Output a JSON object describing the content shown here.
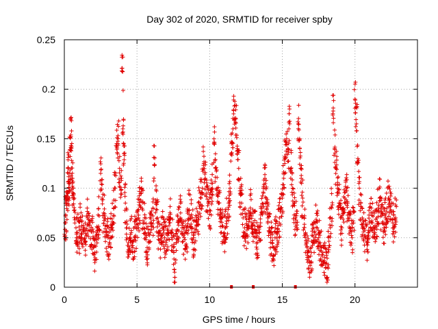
{
  "chart_data": {
    "type": "scatter",
    "title": "Day 302 of 2020, SRMTID for receiver spby",
    "xlabel": "GPS time / hours",
    "ylabel": "SRMTID / TECUs",
    "xlim": [
      0,
      24.3
    ],
    "ylim": [
      0,
      0.25
    ],
    "xticks": [
      0,
      5,
      10,
      15,
      20
    ],
    "xtick_labels": [
      "0",
      "5",
      "10",
      "15",
      "20"
    ],
    "yticks": [
      0,
      0.05,
      0.1,
      0.15,
      0.2,
      0.25
    ],
    "ytick_labels": [
      "0",
      "0.05",
      "0.1",
      "0.15",
      "0.2",
      "0.25"
    ],
    "grid": true,
    "marker": "plus",
    "color": "#e00000",
    "series": [
      {
        "name": "SRMTID",
        "points": [
          [
            0.05,
            0.065
          ],
          [
            0.1,
            0.072
          ],
          [
            0.15,
            0.085
          ],
          [
            0.2,
            0.096
          ],
          [
            0.25,
            0.12
          ],
          [
            0.3,
            0.105
          ],
          [
            0.35,
            0.09
          ],
          [
            0.4,
            0.132
          ],
          [
            0.45,
            0.152
          ],
          [
            0.5,
            0.128
          ],
          [
            0.55,
            0.11
          ],
          [
            0.6,
            0.095
          ],
          [
            0.7,
            0.078
          ],
          [
            0.8,
            0.06
          ],
          [
            0.9,
            0.055
          ],
          [
            1.0,
            0.05
          ],
          [
            1.1,
            0.068
          ],
          [
            1.2,
            0.062
          ],
          [
            1.3,
            0.058
          ],
          [
            1.4,
            0.045
          ],
          [
            1.5,
            0.052
          ],
          [
            1.6,
            0.07
          ],
          [
            1.7,
            0.064
          ],
          [
            1.8,
            0.049
          ],
          [
            1.9,
            0.056
          ],
          [
            2.0,
            0.04
          ],
          [
            2.1,
            0.035
          ],
          [
            2.2,
            0.048
          ],
          [
            2.3,
            0.06
          ],
          [
            2.4,
            0.072
          ],
          [
            2.5,
            0.115
          ],
          [
            2.6,
            0.09
          ],
          [
            2.7,
            0.075
          ],
          [
            2.8,
            0.062
          ],
          [
            2.9,
            0.055
          ],
          [
            3.0,
            0.05
          ],
          [
            3.1,
            0.045
          ],
          [
            3.2,
            0.058
          ],
          [
            3.3,
            0.066
          ],
          [
            3.4,
            0.08
          ],
          [
            3.5,
            0.1
          ],
          [
            3.6,
            0.145
          ],
          [
            3.7,
            0.15
          ],
          [
            3.8,
            0.12
          ],
          [
            3.9,
            0.098
          ],
          [
            4.0,
            0.218
          ],
          [
            4.05,
            0.163
          ],
          [
            4.1,
            0.135
          ],
          [
            4.2,
            0.085
          ],
          [
            4.3,
            0.06
          ],
          [
            4.4,
            0.045
          ],
          [
            4.5,
            0.05
          ],
          [
            4.6,
            0.055
          ],
          [
            4.7,
            0.042
          ],
          [
            4.8,
            0.048
          ],
          [
            4.9,
            0.052
          ],
          [
            5.0,
            0.06
          ],
          [
            5.1,
            0.07
          ],
          [
            5.2,
            0.082
          ],
          [
            5.3,
            0.095
          ],
          [
            5.4,
            0.078
          ],
          [
            5.5,
            0.065
          ],
          [
            5.6,
            0.05
          ],
          [
            5.7,
            0.04
          ],
          [
            5.8,
            0.045
          ],
          [
            5.9,
            0.058
          ],
          [
            6.0,
            0.065
          ],
          [
            6.1,
            0.072
          ],
          [
            6.2,
            0.123
          ],
          [
            6.3,
            0.085
          ],
          [
            6.4,
            0.07
          ],
          [
            6.5,
            0.055
          ],
          [
            6.6,
            0.048
          ],
          [
            6.7,
            0.052
          ],
          [
            6.8,
            0.06
          ],
          [
            6.9,
            0.05
          ],
          [
            7.0,
            0.045
          ],
          [
            7.1,
            0.055
          ],
          [
            7.2,
            0.062
          ],
          [
            7.3,
            0.07
          ],
          [
            7.4,
            0.055
          ],
          [
            7.5,
            0.04
          ],
          [
            7.6,
            0.01
          ],
          [
            7.7,
            0.045
          ],
          [
            7.8,
            0.058
          ],
          [
            7.9,
            0.066
          ],
          [
            8.0,
            0.075
          ],
          [
            8.1,
            0.06
          ],
          [
            8.2,
            0.052
          ],
          [
            8.3,
            0.048
          ],
          [
            8.4,
            0.055
          ],
          [
            8.5,
            0.064
          ],
          [
            8.6,
            0.078
          ],
          [
            8.7,
            0.07
          ],
          [
            8.8,
            0.06
          ],
          [
            8.9,
            0.05
          ],
          [
            9.0,
            0.055
          ],
          [
            9.1,
            0.062
          ],
          [
            9.2,
            0.07
          ],
          [
            9.3,
            0.082
          ],
          [
            9.4,
            0.09
          ],
          [
            9.5,
            0.1
          ],
          [
            9.6,
            0.125
          ],
          [
            9.7,
            0.11
          ],
          [
            9.8,
            0.095
          ],
          [
            9.9,
            0.085
          ],
          [
            10.0,
            0.078
          ],
          [
            10.1,
            0.09
          ],
          [
            10.2,
            0.105
          ],
          [
            10.3,
            0.145
          ],
          [
            10.4,
            0.12
          ],
          [
            10.5,
            0.1
          ],
          [
            10.6,
            0.085
          ],
          [
            10.7,
            0.078
          ],
          [
            10.8,
            0.07
          ],
          [
            10.9,
            0.062
          ],
          [
            11.0,
            0.055
          ],
          [
            11.1,
            0.06
          ],
          [
            11.2,
            0.07
          ],
          [
            11.3,
            0.085
          ],
          [
            11.4,
            0.1
          ],
          [
            11.5,
            0.145
          ],
          [
            11.6,
            0.16
          ],
          [
            11.7,
            0.183
          ],
          [
            11.8,
            0.17
          ],
          [
            11.9,
            0.14
          ],
          [
            12.0,
            0.12
          ],
          [
            12.1,
            0.1
          ],
          [
            12.2,
            0.085
          ],
          [
            12.3,
            0.07
          ],
          [
            12.4,
            0.06
          ],
          [
            12.5,
            0.052
          ],
          [
            12.6,
            0.06
          ],
          [
            12.7,
            0.07
          ],
          [
            12.8,
            0.08
          ],
          [
            12.9,
            0.072
          ],
          [
            13.0,
            0.065
          ],
          [
            13.1,
            0.058
          ],
          [
            13.2,
            0.05
          ],
          [
            13.3,
            0.045
          ],
          [
            13.4,
            0.055
          ],
          [
            13.5,
            0.065
          ],
          [
            13.6,
            0.08
          ],
          [
            13.7,
            0.095
          ],
          [
            13.8,
            0.11
          ],
          [
            13.9,
            0.09
          ],
          [
            14.0,
            0.07
          ],
          [
            14.1,
            0.06
          ],
          [
            14.2,
            0.05
          ],
          [
            14.3,
            0.045
          ],
          [
            14.4,
            0.04
          ],
          [
            14.5,
            0.05
          ],
          [
            14.6,
            0.055
          ],
          [
            14.7,
            0.062
          ],
          [
            14.8,
            0.07
          ],
          [
            14.9,
            0.08
          ],
          [
            15.0,
            0.09
          ],
          [
            15.1,
            0.11
          ],
          [
            15.2,
            0.13
          ],
          [
            15.3,
            0.15
          ],
          [
            15.4,
            0.14
          ],
          [
            15.5,
            0.165
          ],
          [
            15.6,
            0.12
          ],
          [
            15.7,
            0.1
          ],
          [
            15.8,
            0.085
          ],
          [
            15.9,
            0.07
          ],
          [
            16.0,
            0.06
          ],
          [
            16.1,
            0.165
          ],
          [
            16.2,
            0.14
          ],
          [
            16.3,
            0.11
          ],
          [
            16.4,
            0.09
          ],
          [
            16.5,
            0.07
          ],
          [
            16.6,
            0.055
          ],
          [
            16.7,
            0.04
          ],
          [
            16.8,
            0.03
          ],
          [
            16.9,
            0.025
          ],
          [
            17.0,
            0.035
          ],
          [
            17.1,
            0.045
          ],
          [
            17.2,
            0.055
          ],
          [
            17.3,
            0.065
          ],
          [
            17.4,
            0.06
          ],
          [
            17.5,
            0.05
          ],
          [
            17.6,
            0.045
          ],
          [
            17.7,
            0.04
          ],
          [
            17.8,
            0.035
          ],
          [
            17.9,
            0.03
          ],
          [
            18.0,
            0.02
          ],
          [
            18.1,
            0.01
          ],
          [
            18.2,
            0.04
          ],
          [
            18.3,
            0.06
          ],
          [
            18.4,
            0.08
          ],
          [
            18.5,
            0.178
          ],
          [
            18.6,
            0.14
          ],
          [
            18.7,
            0.12
          ],
          [
            18.8,
            0.1
          ],
          [
            18.9,
            0.085
          ],
          [
            19.0,
            0.07
          ],
          [
            19.1,
            0.06
          ],
          [
            19.2,
            0.075
          ],
          [
            19.3,
            0.09
          ],
          [
            19.4,
            0.1
          ],
          [
            19.5,
            0.085
          ],
          [
            19.6,
            0.07
          ],
          [
            19.7,
            0.06
          ],
          [
            19.8,
            0.05
          ],
          [
            19.9,
            0.065
          ],
          [
            20.0,
            0.19
          ],
          [
            20.1,
            0.165
          ],
          [
            20.2,
            0.13
          ],
          [
            20.3,
            0.1
          ],
          [
            20.4,
            0.085
          ],
          [
            20.5,
            0.07
          ],
          [
            20.6,
            0.06
          ],
          [
            20.7,
            0.05
          ],
          [
            20.8,
            0.045
          ],
          [
            20.9,
            0.055
          ],
          [
            21.0,
            0.065
          ],
          [
            21.1,
            0.075
          ],
          [
            21.2,
            0.065
          ],
          [
            21.3,
            0.055
          ],
          [
            21.4,
            0.06
          ],
          [
            21.5,
            0.07
          ],
          [
            21.6,
            0.08
          ],
          [
            21.7,
            0.09
          ],
          [
            21.8,
            0.075
          ],
          [
            21.9,
            0.065
          ],
          [
            22.0,
            0.06
          ],
          [
            22.1,
            0.07
          ],
          [
            22.2,
            0.08
          ],
          [
            22.3,
            0.09
          ],
          [
            22.4,
            0.085
          ],
          [
            22.5,
            0.075
          ],
          [
            22.6,
            0.065
          ],
          [
            22.7,
            0.06
          ],
          [
            22.8,
            0.07
          ]
        ]
      }
    ],
    "gap_markers_x": [
      11.5,
      13.0,
      15.9
    ]
  }
}
